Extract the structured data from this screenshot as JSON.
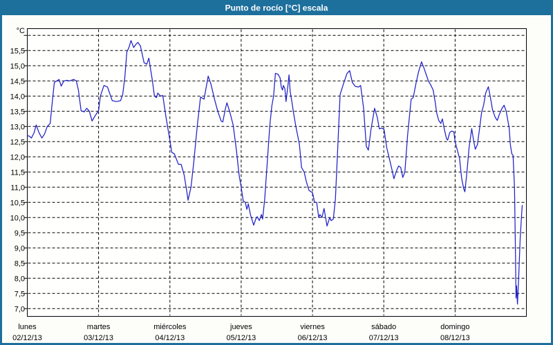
{
  "window": {
    "title": "Punto de rocío [°C] escala"
  },
  "colors": {
    "frame": "#1d6f9c",
    "titlebar": "#1d6f9c",
    "title_text": "#ffffff",
    "background": "#fdfefa",
    "plot_background": "#fffffe",
    "grid": "#000000",
    "line": "#1f1fc8",
    "text": "#000000"
  },
  "chart_data": {
    "type": "line",
    "title": "Punto de rocío [°C] escala",
    "ylabel": "°C",
    "xlabel": "",
    "ylim": [
      6.75,
      16.2
    ],
    "grid_range": [
      7.0,
      16.0
    ],
    "grid_step": 0.5,
    "grid_on": true,
    "legend": "none",
    "yticks": [
      {
        "v": 15.5,
        "label": "15,5"
      },
      {
        "v": 15.0,
        "label": "15,0"
      },
      {
        "v": 14.5,
        "label": "14,5"
      },
      {
        "v": 14.0,
        "label": "14,0"
      },
      {
        "v": 13.5,
        "label": "13,5"
      },
      {
        "v": 13.0,
        "label": "13,0"
      },
      {
        "v": 12.5,
        "label": "12,5"
      },
      {
        "v": 12.0,
        "label": "12,0"
      },
      {
        "v": 11.5,
        "label": "11,5"
      },
      {
        "v": 11.0,
        "label": "11,0"
      },
      {
        "v": 10.5,
        "label": "10,5"
      },
      {
        "v": 10.0,
        "label": "10,0"
      },
      {
        "v": 9.5,
        "label": "9,5"
      },
      {
        "v": 9.0,
        "label": "9,0"
      },
      {
        "v": 8.5,
        "label": "8,5"
      },
      {
        "v": 8.0,
        "label": "8,0"
      },
      {
        "v": 7.5,
        "label": "7,5"
      },
      {
        "v": 7.0,
        "label": "7,0"
      }
    ],
    "x_unit": "hours_from_start",
    "xlim": [
      0,
      168
    ],
    "days": [
      {
        "name": "lunes",
        "date": "02/12/13",
        "start_hour": 0
      },
      {
        "name": "martes",
        "date": "03/12/13",
        "start_hour": 24
      },
      {
        "name": "miércoles",
        "date": "04/12/13",
        "start_hour": 48
      },
      {
        "name": "jueves",
        "date": "05/12/13",
        "start_hour": 72
      },
      {
        "name": "viernes",
        "date": "06/12/13",
        "start_hour": 96
      },
      {
        "name": "sábado",
        "date": "07/12/13",
        "start_hour": 120
      },
      {
        "name": "domingo",
        "date": "08/12/13",
        "start_hour": 144
      }
    ],
    "series": [
      {
        "name": "Punto de rocío [°C]",
        "color": "#1f1fc8",
        "points": [
          [
            0,
            12.7
          ],
          [
            0.7,
            12.68
          ],
          [
            1.4,
            12.62
          ],
          [
            2.3,
            12.8
          ],
          [
            3,
            13.05
          ],
          [
            3.9,
            12.8
          ],
          [
            4.9,
            12.62
          ],
          [
            5.8,
            12.75
          ],
          [
            6.7,
            13
          ],
          [
            7.7,
            13.1
          ],
          [
            8.4,
            13.8
          ],
          [
            9.1,
            14.45
          ],
          [
            9.9,
            14.5
          ],
          [
            10.7,
            14.55
          ],
          [
            11.4,
            14.33
          ],
          [
            12.3,
            14.5
          ],
          [
            13.3,
            14.52
          ],
          [
            14.2,
            14.5
          ],
          [
            15.6,
            14.55
          ],
          [
            16.5,
            14.5
          ],
          [
            17.2,
            14.2
          ],
          [
            18.1,
            13.52
          ],
          [
            19.1,
            13.48
          ],
          [
            20,
            13.6
          ],
          [
            20.9,
            13.5
          ],
          [
            21.8,
            13.18
          ],
          [
            22.8,
            13.35
          ],
          [
            24,
            13.52
          ],
          [
            24.6,
            14
          ],
          [
            25.8,
            14.35
          ],
          [
            27,
            14.3
          ],
          [
            28.6,
            13.85
          ],
          [
            30,
            13.82
          ],
          [
            31.4,
            13.85
          ],
          [
            32.1,
            14.05
          ],
          [
            32.8,
            14.6
          ],
          [
            33.5,
            15.45
          ],
          [
            34.2,
            15.6
          ],
          [
            34.9,
            15.83
          ],
          [
            35.8,
            15.6
          ],
          [
            36.5,
            15.7
          ],
          [
            37.2,
            15.77
          ],
          [
            38.1,
            15.65
          ],
          [
            39.3,
            15.1
          ],
          [
            40.2,
            15.05
          ],
          [
            40.9,
            15.25
          ],
          [
            42.1,
            14.52
          ],
          [
            42.8,
            14
          ],
          [
            43.5,
            13.95
          ],
          [
            43.9,
            14.1
          ],
          [
            44.9,
            14
          ],
          [
            45.6,
            14.02
          ],
          [
            46.7,
            13.3
          ],
          [
            48,
            12.54
          ],
          [
            48.6,
            12.15
          ],
          [
            49.5,
            12.1
          ],
          [
            50.4,
            11.87
          ],
          [
            50.9,
            11.75
          ],
          [
            51.8,
            11.75
          ],
          [
            52.8,
            11.4
          ],
          [
            53.7,
            10.85
          ],
          [
            54.1,
            10.57
          ],
          [
            55.1,
            11
          ],
          [
            56,
            11.8
          ],
          [
            57.2,
            13
          ],
          [
            58.3,
            13.97
          ],
          [
            59.5,
            13.9
          ],
          [
            60.9,
            14.66
          ],
          [
            61.8,
            14.4
          ],
          [
            63,
            13.9
          ],
          [
            64.1,
            13.5
          ],
          [
            65.3,
            13.17
          ],
          [
            65.8,
            13.15
          ],
          [
            66.7,
            13.6
          ],
          [
            67.2,
            13.78
          ],
          [
            68.1,
            13.5
          ],
          [
            69.3,
            13.05
          ],
          [
            70.4,
            12.2
          ],
          [
            71.3,
            11.4
          ],
          [
            72,
            11
          ],
          [
            72.7,
            10.55
          ],
          [
            73.4,
            10.5
          ],
          [
            73.9,
            10.27
          ],
          [
            74.4,
            10.45
          ],
          [
            75.1,
            10.1
          ],
          [
            76.2,
            9.75
          ],
          [
            76.9,
            9.95
          ],
          [
            77.4,
            10.03
          ],
          [
            78.1,
            9.9
          ],
          [
            78.8,
            10.1
          ],
          [
            79.2,
            9.95
          ],
          [
            79.9,
            10.6
          ],
          [
            80.9,
            12
          ],
          [
            81.6,
            13
          ],
          [
            82.3,
            13.67
          ],
          [
            82.9,
            14
          ],
          [
            83.5,
            14.75
          ],
          [
            84.4,
            14.72
          ],
          [
            85.1,
            14.6
          ],
          [
            85.5,
            14.3
          ],
          [
            85.9,
            14.2
          ],
          [
            86.2,
            14.35
          ],
          [
            86.7,
            14.25
          ],
          [
            87.1,
            13.82
          ],
          [
            87.8,
            14.4
          ],
          [
            88.1,
            14.7
          ],
          [
            88.5,
            14.15
          ],
          [
            89,
            13.85
          ],
          [
            89.7,
            13.4
          ],
          [
            90.4,
            13
          ],
          [
            90.9,
            12.75
          ],
          [
            91.6,
            12.4
          ],
          [
            92.3,
            11.65
          ],
          [
            93.2,
            11.5
          ],
          [
            93.9,
            11.2
          ],
          [
            94.8,
            10.9
          ],
          [
            95.5,
            10.85
          ],
          [
            96,
            10.82
          ],
          [
            96.7,
            10.5
          ],
          [
            97.4,
            10.5
          ],
          [
            98.1,
            10
          ],
          [
            98.5,
            10.1
          ],
          [
            99.2,
            10
          ],
          [
            99.9,
            10.3
          ],
          [
            100.9,
            9.72
          ],
          [
            101.8,
            10
          ],
          [
            102.3,
            9.9
          ],
          [
            103,
            9.95
          ],
          [
            103.7,
            10.6
          ],
          [
            104.6,
            12.5
          ],
          [
            105.3,
            14.05
          ],
          [
            106.4,
            14.4
          ],
          [
            107.6,
            14.74
          ],
          [
            108.5,
            14.84
          ],
          [
            109.4,
            14.45
          ],
          [
            110.4,
            14.32
          ],
          [
            111.5,
            14.3
          ],
          [
            112.2,
            14.35
          ],
          [
            113.2,
            13.6
          ],
          [
            114.1,
            12.35
          ],
          [
            114.8,
            12.22
          ],
          [
            115.7,
            12.9
          ],
          [
            116.9,
            13.6
          ],
          [
            117.8,
            13.3
          ],
          [
            118.5,
            12.92
          ],
          [
            119.4,
            12.95
          ],
          [
            120.1,
            12.9
          ],
          [
            121,
            12.3
          ],
          [
            121.8,
            11.98
          ],
          [
            122.7,
            11.6
          ],
          [
            123.4,
            11.28
          ],
          [
            124.3,
            11.55
          ],
          [
            125,
            11.7
          ],
          [
            125.7,
            11.65
          ],
          [
            126.4,
            11.32
          ],
          [
            127.1,
            11.5
          ],
          [
            128,
            12.7
          ],
          [
            129.2,
            13.9
          ],
          [
            129.9,
            13.95
          ],
          [
            130.8,
            14.4
          ],
          [
            131.7,
            14.8
          ],
          [
            132.7,
            15.13
          ],
          [
            133.6,
            14.9
          ],
          [
            134.3,
            14.7
          ],
          [
            135,
            14.5
          ],
          [
            135.9,
            14.35
          ],
          [
            136.6,
            14.2
          ],
          [
            137.3,
            13.8
          ],
          [
            137.8,
            13.45
          ],
          [
            138.5,
            13.2
          ],
          [
            139.2,
            13.1
          ],
          [
            139.7,
            13.25
          ],
          [
            140.4,
            12.9
          ],
          [
            141.1,
            12.6
          ],
          [
            141.5,
            12.55
          ],
          [
            142.2,
            12.8
          ],
          [
            142.9,
            12.85
          ],
          [
            143.6,
            12.82
          ],
          [
            144,
            12.5
          ],
          [
            144.8,
            12.2
          ],
          [
            145.5,
            11.95
          ],
          [
            146.2,
            11.3
          ],
          [
            146.9,
            10.95
          ],
          [
            147.3,
            10.85
          ],
          [
            148,
            11.5
          ],
          [
            148.7,
            12.3
          ],
          [
            149.6,
            12.93
          ],
          [
            150.3,
            12.5
          ],
          [
            150.8,
            12.25
          ],
          [
            151.5,
            12.4
          ],
          [
            152.2,
            12.9
          ],
          [
            152.9,
            13.45
          ],
          [
            153.6,
            13.7
          ],
          [
            154.3,
            14.1
          ],
          [
            155.2,
            14.31
          ],
          [
            155.9,
            13.95
          ],
          [
            156.6,
            13.55
          ],
          [
            157.5,
            13.3
          ],
          [
            158.2,
            13.2
          ],
          [
            158.9,
            13.4
          ],
          [
            159.8,
            13.6
          ],
          [
            160.5,
            13.7
          ],
          [
            161.2,
            13.5
          ],
          [
            162.2,
            12.95
          ],
          [
            162.6,
            12.4
          ],
          [
            163.1,
            12.1
          ],
          [
            163.5,
            12.05
          ],
          [
            164,
            11
          ],
          [
            164.3,
            9
          ],
          [
            164.5,
            7.35
          ],
          [
            164.7,
            7.75
          ],
          [
            165,
            7.15
          ],
          [
            165.4,
            8
          ],
          [
            165.9,
            9.3
          ],
          [
            166.4,
            10.1
          ],
          [
            166.6,
            10.4
          ]
        ]
      }
    ]
  }
}
